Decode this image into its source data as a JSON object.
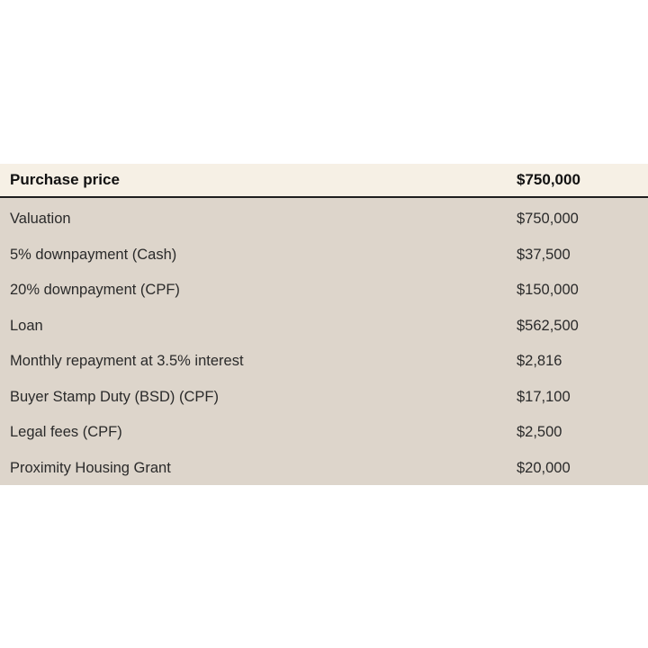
{
  "header": {
    "label": "Purchase price",
    "value": "$750,000"
  },
  "rows": [
    {
      "label": "Valuation",
      "value": "$750,000"
    },
    {
      "label": "5% downpayment (Cash)",
      "value": "$37,500"
    },
    {
      "label": "20% downpayment (CPF)",
      "value": "$150,000"
    },
    {
      "label": "Loan",
      "value": "$562,500"
    },
    {
      "label": "Monthly repayment at 3.5% interest",
      "value": "$2,816"
    },
    {
      "label": "Buyer Stamp Duty (BSD) (CPF)",
      "value": "$17,100"
    },
    {
      "label": "Legal fees (CPF)",
      "value": "$2,500"
    },
    {
      "label": "Proximity Housing Grant",
      "value": "$20,000"
    }
  ]
}
